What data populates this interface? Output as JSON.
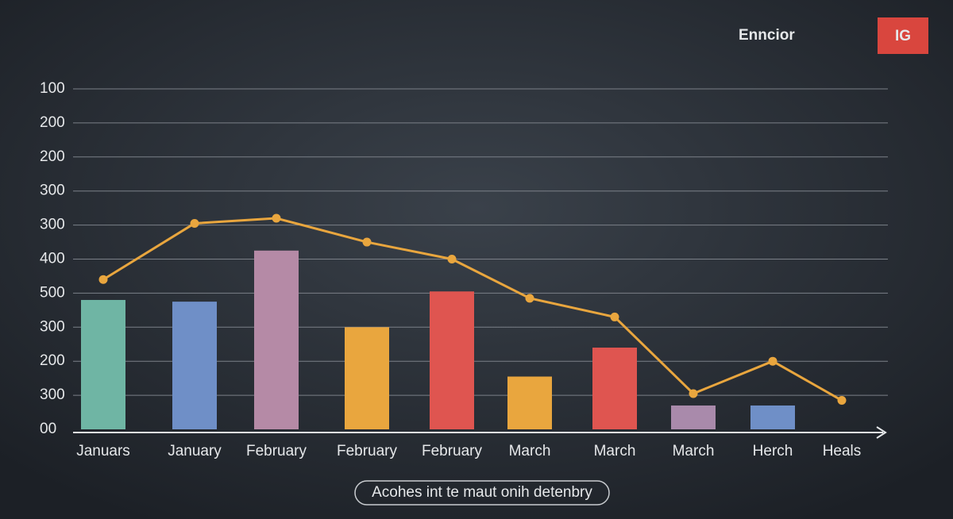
{
  "chart_data": {
    "type": "bar-line",
    "brand": "Enncior",
    "badge": "IG",
    "caption": "Acohes int te maut onih detenbry",
    "categories": [
      "Januars",
      "January",
      "February",
      "February",
      "February",
      "March",
      "March",
      "March",
      "Herch",
      "Heals"
    ],
    "series": [
      {
        "type": "bar",
        "colors": [
          "#6fb5a4",
          "#6f8fc7",
          "#b58aa6",
          "#e9a63e",
          "#df5550",
          "#e9a63e",
          "#df5550",
          "#a98aab",
          "#6f8fc7",
          null
        ],
        "values": [
          3.8,
          3.75,
          5.25,
          3.0,
          4.05,
          1.55,
          2.4,
          0.7,
          0.7,
          null
        ]
      },
      {
        "type": "line",
        "color": "#e9a63e",
        "values": [
          4.4,
          6.05,
          6.2,
          5.5,
          5.0,
          3.85,
          3.3,
          1.05,
          2.0,
          0.85
        ]
      }
    ],
    "ylim": [
      0,
      10
    ],
    "yticks": [
      {
        "value": 0,
        "label": "00"
      },
      {
        "value": 1,
        "label": "300"
      },
      {
        "value": 2,
        "label": "200"
      },
      {
        "value": 3,
        "label": "300"
      },
      {
        "value": 4,
        "label": "500"
      },
      {
        "value": 5,
        "label": "400"
      },
      {
        "value": 6,
        "label": "300"
      },
      {
        "value": 7,
        "label": "300"
      },
      {
        "value": 8,
        "label": "200"
      },
      {
        "value": 9,
        "label": "200"
      },
      {
        "value": 10,
        "label": "100"
      }
    ],
    "grid": true
  }
}
